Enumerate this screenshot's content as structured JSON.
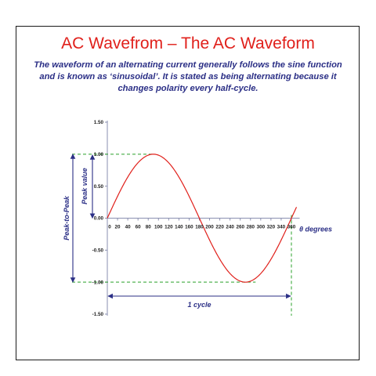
{
  "title": "AC Wavefrom – The AC Waveform",
  "description": "The waveform of an alternating current generally follows the sine function and is known as ‘sinusoidal’. It is stated as being alternating because it changes polarity every half-cycle.",
  "colors": {
    "title": "#e0201b",
    "description": "#2b2f86",
    "curve": "#e0201b",
    "guides": "#2aa02a",
    "annotations": "#2b2f86"
  },
  "chart_data": {
    "type": "line",
    "x_ticks": [
      "0",
      "20",
      "40",
      "60",
      "80",
      "100",
      "120",
      "140",
      "160",
      "180",
      "200",
      "220",
      "240",
      "260",
      "280",
      "300",
      "320",
      "340",
      "360"
    ],
    "y_ticks": [
      "1.50",
      "1.00",
      "0.50",
      "0.00",
      "-0.50",
      "-1.00",
      "-1.50"
    ],
    "xlim": [
      0,
      370
    ],
    "ylim": [
      -1.5,
      1.5
    ],
    "xlabel": "θ degrees",
    "series": [
      {
        "function": "sin",
        "x_start": 0,
        "x_end": 370,
        "amplitude": 1.0
      }
    ],
    "annotations": {
      "peak_value": "Peak value",
      "peak_to_peak": "Peak-to-Peak",
      "cycle": "1 cycle"
    }
  }
}
